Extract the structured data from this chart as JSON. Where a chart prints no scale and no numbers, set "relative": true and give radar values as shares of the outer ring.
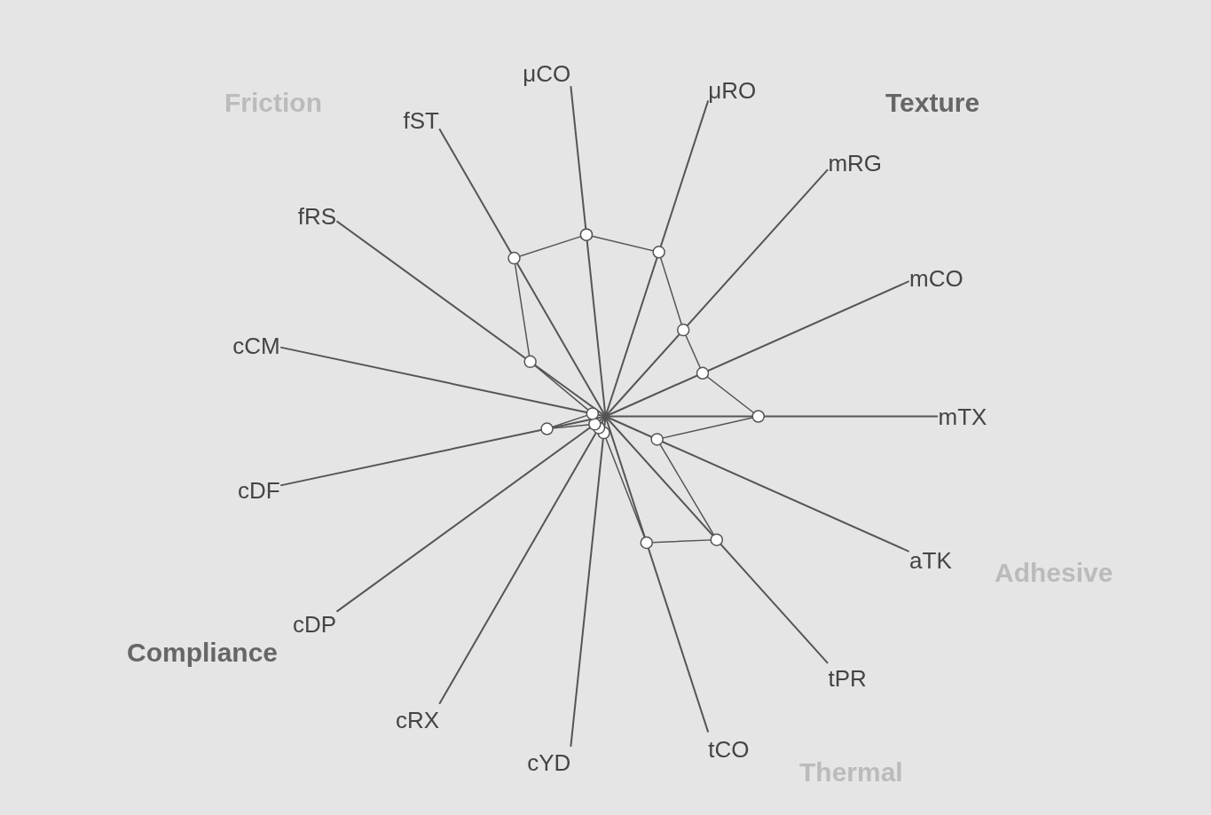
{
  "chart_data": {
    "type": "radar",
    "relative": true,
    "grid": "x",
    "marker": "circle",
    "line_style": "solid",
    "categories": [
      "μCO",
      "μRO",
      "mRG",
      "mCO",
      "mTX",
      "aTK",
      "tPR",
      "tCO",
      "cYD",
      "cRX",
      "cDP",
      "cDF",
      "cCM",
      "fRS",
      "fST"
    ],
    "series": [
      {
        "color": "#555555",
        "values": [
          0.55,
          0.52,
          0.35,
          0.32,
          0.46,
          0.17,
          0.5,
          0.4,
          0.05,
          0.04,
          0.04,
          0.18,
          0.04,
          0.28,
          0.55
        ]
      }
    ],
    "annotations": [
      "Friction",
      "Texture",
      "Adhesive",
      "Thermal",
      "Compliance"
    ]
  }
}
